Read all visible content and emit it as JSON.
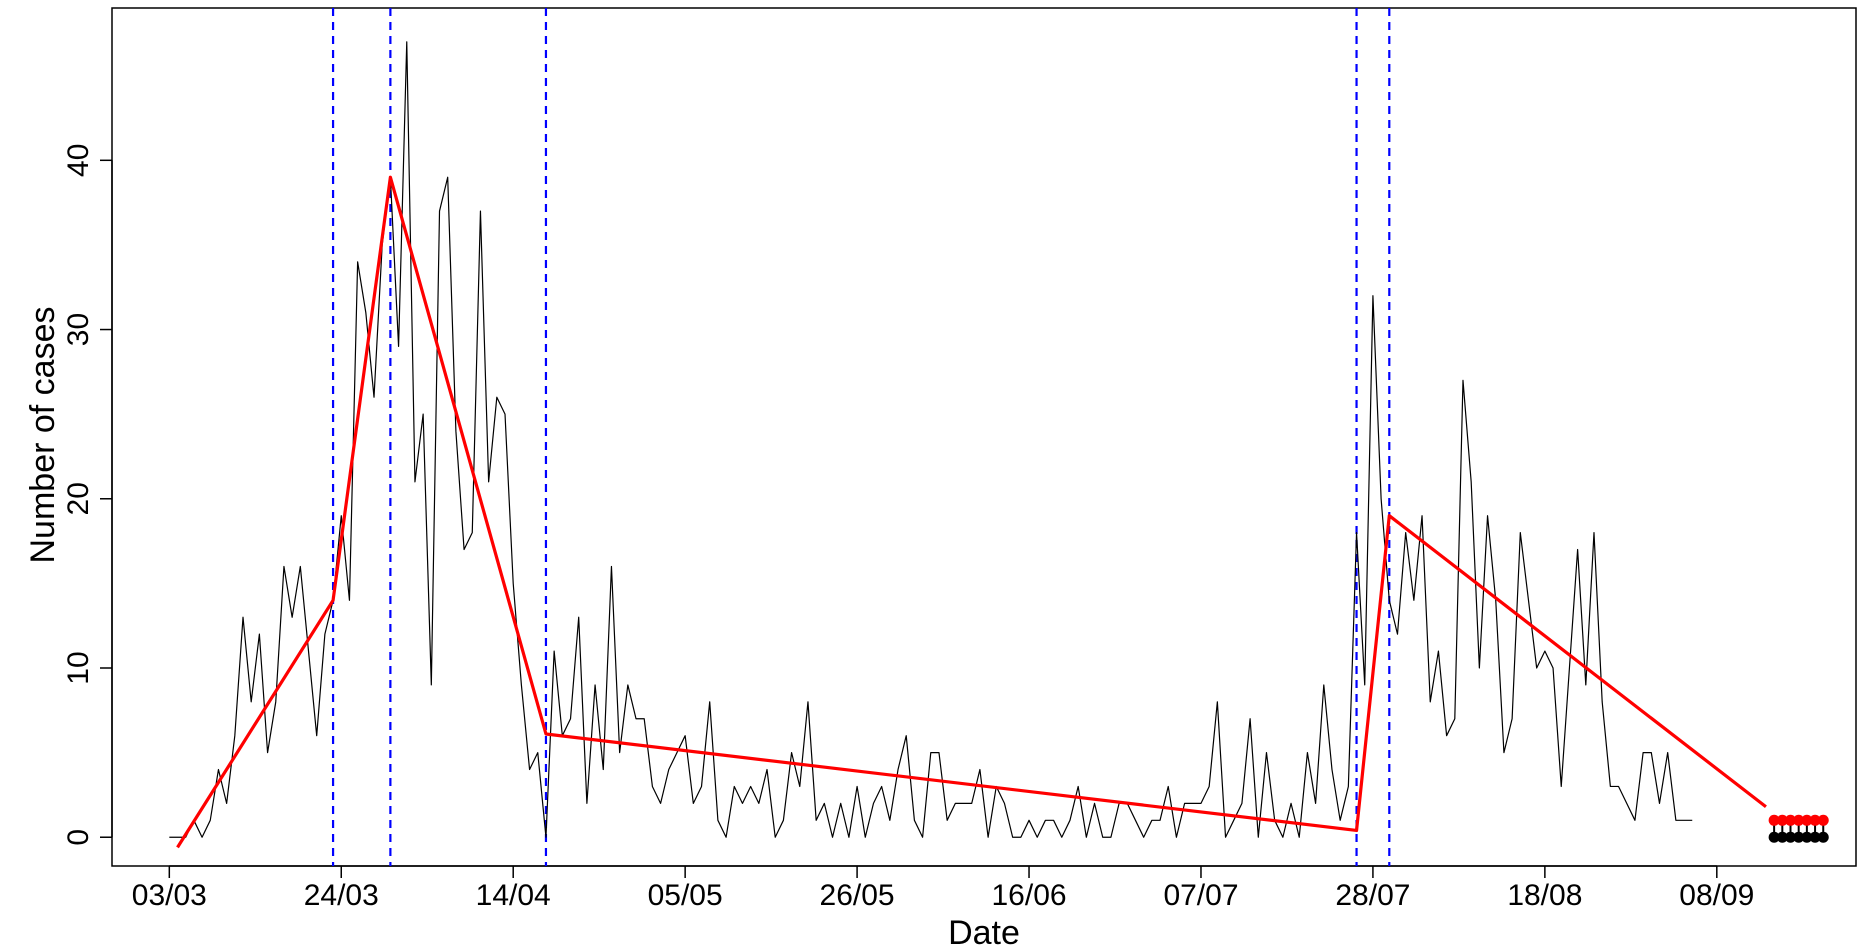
{
  "chart_data": {
    "type": "line",
    "xlabel": "Date",
    "ylabel": "Number of cases",
    "ylim": [
      -1.7,
      49.0
    ],
    "xlim": [
      -7,
      206
    ],
    "x_ticks": [
      {
        "day": 0,
        "label": "03/03"
      },
      {
        "day": 21,
        "label": "24/03"
      },
      {
        "day": 42,
        "label": "14/04"
      },
      {
        "day": 63,
        "label": "05/05"
      },
      {
        "day": 84,
        "label": "26/05"
      },
      {
        "day": 105,
        "label": "16/06"
      },
      {
        "day": 126,
        "label": "07/07"
      },
      {
        "day": 147,
        "label": "28/07"
      },
      {
        "day": 168,
        "label": "18/08"
      },
      {
        "day": 189,
        "label": "08/09"
      }
    ],
    "y_ticks": [
      0,
      10,
      20,
      30,
      40
    ],
    "colors": {
      "observed": "#000000",
      "fitted": "#ff0000",
      "changepoints": "#0000ff",
      "points_top": "#ff0000",
      "points_bottom": "#000000"
    },
    "series": [
      {
        "role": "observed",
        "values": [
          0,
          0,
          0,
          1,
          0,
          1,
          4,
          2,
          6,
          13,
          8,
          12,
          5,
          8,
          16,
          13,
          16,
          11,
          6,
          12,
          14,
          19,
          14,
          34,
          31,
          26,
          35,
          39,
          29,
          47,
          21,
          25,
          9,
          37,
          39,
          24,
          17,
          18,
          37,
          21,
          26,
          25,
          15,
          9,
          4,
          5,
          0,
          11,
          6,
          7,
          13,
          2,
          9,
          4,
          16,
          5,
          9,
          7,
          7,
          3,
          2,
          4,
          5,
          6,
          2,
          3,
          8,
          1,
          0,
          3,
          2,
          3,
          2,
          4,
          0,
          1,
          5,
          3,
          8,
          1,
          2,
          0,
          2,
          0,
          3,
          0,
          2,
          3,
          1,
          4,
          6,
          1,
          0,
          5,
          5,
          1,
          2,
          2,
          2,
          4,
          0,
          3,
          2,
          0,
          0,
          1,
          0,
          1,
          1,
          0,
          1,
          3,
          0,
          2,
          0,
          0,
          2,
          2,
          1,
          0,
          1,
          1,
          3,
          0,
          2,
          2,
          2,
          3,
          8,
          0,
          1,
          2,
          7,
          0,
          5,
          1,
          0,
          2,
          0,
          5,
          2,
          9,
          4,
          1,
          3,
          18,
          9,
          32,
          20,
          14,
          12,
          18,
          14,
          19,
          8,
          11,
          6,
          7,
          27,
          21,
          10,
          19,
          14,
          5,
          7,
          18,
          14,
          10,
          11,
          10,
          3,
          10,
          17,
          9,
          18,
          8,
          3,
          3,
          2,
          1,
          5,
          5,
          2,
          5,
          1,
          1,
          1
        ]
      },
      {
        "role": "fitted",
        "points": [
          [
            1,
            -0.6
          ],
          [
            20,
            14
          ],
          [
            27,
            39
          ],
          [
            46,
            6.1
          ],
          [
            145,
            0.4
          ],
          [
            149,
            19
          ],
          [
            195,
            1.8
          ]
        ]
      }
    ],
    "changepoints": [
      20,
      27,
      46,
      145,
      149
    ],
    "future_points": {
      "days": [
        196,
        197,
        198,
        199,
        200,
        201,
        202
      ],
      "upper": [
        1,
        1,
        1,
        1,
        1,
        1,
        1
      ],
      "lower": [
        0,
        0,
        0,
        0,
        0,
        0,
        0
      ]
    }
  }
}
